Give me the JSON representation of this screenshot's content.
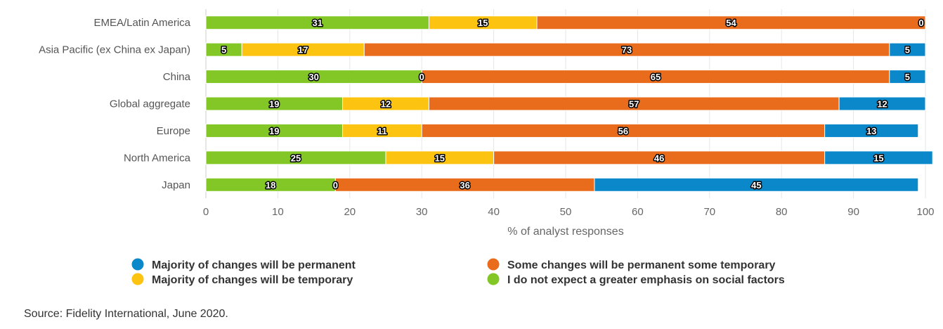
{
  "chart_data": {
    "type": "bar",
    "orientation": "horizontal",
    "stacked": true,
    "categories": [
      "EMEA/Latin America",
      "Asia Pacific (ex China ex Japan)",
      "China",
      "Global aggregate",
      "Europe",
      "North America",
      "Japan"
    ],
    "series": [
      {
        "name": "I do not expect a greater emphasis on social factors",
        "color": "#82c726",
        "values": [
          31,
          5,
          30,
          19,
          19,
          25,
          18
        ]
      },
      {
        "name": "Majority of changes will be temporary",
        "color": "#fcc310",
        "values": [
          15,
          17,
          0,
          12,
          11,
          15,
          0
        ]
      },
      {
        "name": "Some changes will be permanent some temporary",
        "color": "#e96c1c",
        "values": [
          54,
          73,
          65,
          57,
          56,
          46,
          36
        ]
      },
      {
        "name": "Majority of changes will be permanent",
        "color": "#0a88ca",
        "values": [
          0,
          5,
          5,
          12,
          13,
          15,
          45
        ]
      }
    ],
    "xlabel": "% of analyst responses",
    "xlim": [
      0,
      100
    ],
    "xticks": [
      0,
      10,
      20,
      30,
      40,
      50,
      60,
      70,
      80,
      90,
      100
    ],
    "grid": true,
    "legend": {
      "placement": "bottom",
      "order": [
        {
          "label": "Majority of changes will be permanent",
          "color": "#0a88ca"
        },
        {
          "label": "Some changes will be permanent some temporary",
          "color": "#e96c1c"
        },
        {
          "label": "Majority of changes will be temporary",
          "color": "#fcc310"
        },
        {
          "label": "I do not expect a greater emphasis on social factors",
          "color": "#82c726"
        }
      ]
    }
  },
  "source": "Source: Fidelity International, June 2020."
}
